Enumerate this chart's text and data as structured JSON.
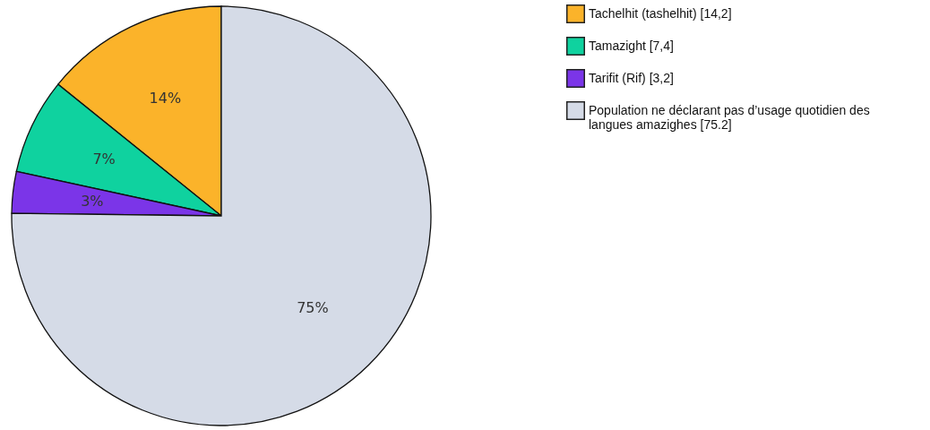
{
  "chart_data": {
    "type": "pie",
    "categories": [
      "Tachelhit (tashelhit) [14,2]",
      "Tamazight [7,4]",
      "Tarifit (Rif) [3,2]",
      "Population ne déclarant pas d’usage quotidien des langues amazighes [75.2]"
    ],
    "values": [
      14.2,
      7.4,
      3.2,
      75.2
    ],
    "colors": [
      "#fbb32a",
      "#0fd29f",
      "#7b35e8",
      "#d5dbe7"
    ],
    "value_labels": [
      "14%",
      "7%",
      "3%",
      "75%"
    ],
    "legend": "right"
  }
}
